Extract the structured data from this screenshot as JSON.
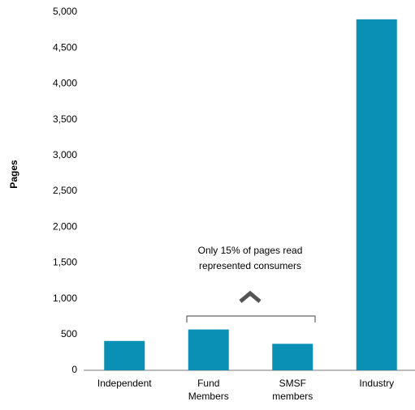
{
  "chart_data": {
    "type": "bar",
    "y_label": "Pages",
    "annotation": "Only 15% of pages read represented consumers",
    "categories": [
      "Independent",
      "Fund Members",
      "SMSF members",
      "Industry"
    ],
    "values": [
      410,
      570,
      370,
      4900
    ],
    "color": "#0a8fb5",
    "ylim": [
      0,
      5000
    ],
    "yticks": [
      0,
      500,
      {
        "value": 1000,
        "label": "1,000"
      },
      {
        "value": 1500,
        "label": "1,500"
      },
      {
        "value": 2000,
        "label": "2,000"
      },
      {
        "value": 2500,
        "label": "2,500"
      },
      {
        "value": 3000,
        "label": "3,000"
      },
      {
        "value": 3500,
        "label": "3,500"
      },
      {
        "value": 4000,
        "label": "4,000"
      },
      {
        "value": 4500,
        "label": "4,500"
      },
      {
        "value": 5000,
        "label": "5,000"
      }
    ],
    "grid": false
  }
}
